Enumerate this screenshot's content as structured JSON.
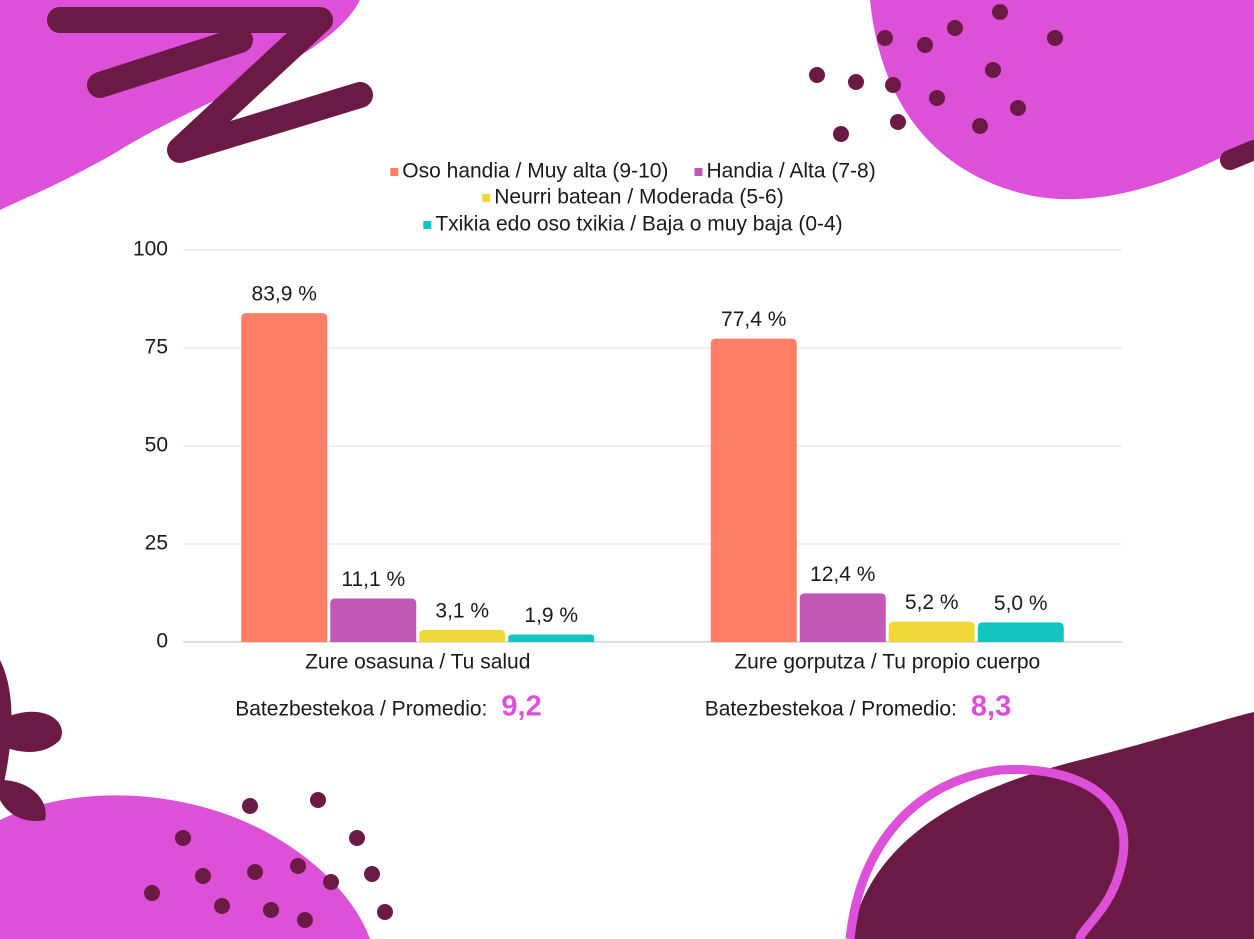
{
  "chart_data": {
    "type": "bar",
    "categories": [
      "Zure osasuna / Tu salud",
      "Zure gorputza / Tu propio cuerpo"
    ],
    "series": [
      {
        "name": "Oso handia / Muy alta (9-10)",
        "color": "#ff7f66",
        "values": [
          83.9,
          77.4
        ],
        "value_labels": [
          "83,9 %",
          "77,4 %"
        ]
      },
      {
        "name": "Handia / Alta (7-8)",
        "color": "#c158b8",
        "values": [
          11.1,
          12.4
        ],
        "value_labels": [
          "11,1 %",
          "12,4 %"
        ]
      },
      {
        "name": "Neurri batean / Moderada (5-6)",
        "color": "#f0d83a",
        "values": [
          3.1,
          5.2
        ],
        "value_labels": [
          "3,1 %",
          "5,2 %"
        ]
      },
      {
        "name": "Txikia edo oso txikia / Baja o muy baja (0-4)",
        "color": "#14c4bf",
        "values": [
          1.9,
          5.0
        ],
        "value_labels": [
          "1,9 %",
          "5,0 %"
        ]
      }
    ],
    "ylim": [
      0,
      100
    ],
    "yticks": [
      0,
      25,
      50,
      75,
      100
    ],
    "grid": true,
    "legend": "top",
    "averages": [
      {
        "label": "Batezbestekoa / Promedio:",
        "value": "9,2"
      },
      {
        "label": "Batezbestekoa / Promedio:",
        "value": "8,3"
      }
    ]
  }
}
